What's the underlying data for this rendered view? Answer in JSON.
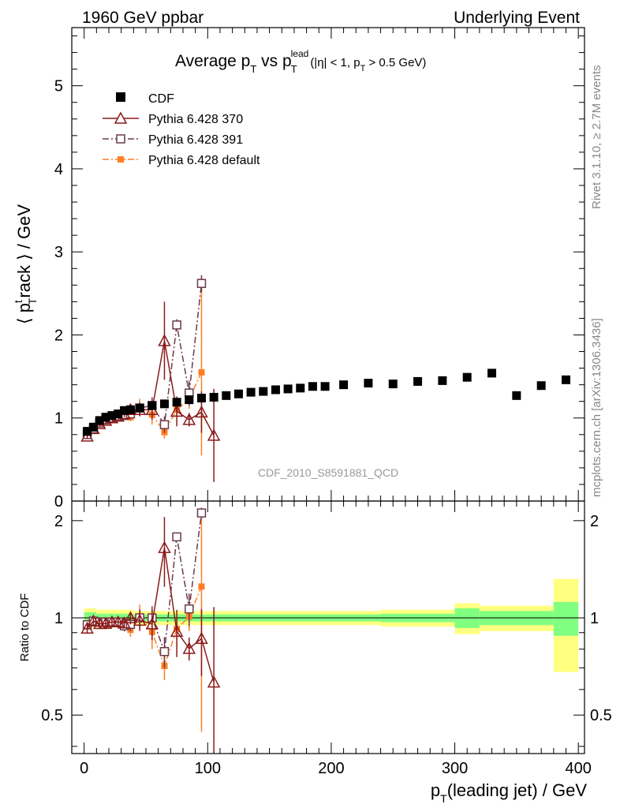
{
  "header": {
    "left": "1960 GeV ppbar",
    "right": "Underlying Event"
  },
  "title": {
    "main": "Average p",
    "sub_t": "T",
    "vs": " vs p",
    "sub_t2": "T",
    "sup_lead": "lead",
    "cuts": "(|η| < 1, p",
    "cuts_sub": "T",
    "cuts_end": " > 0.5 GeV)"
  },
  "watermark": "CDF_2010_S8591881_QCD",
  "side_text": {
    "rivet": "Rivet 3.1.10, ≥ 2.7M events",
    "mcplots": "mcplots.cern.ch [arXiv:1306.3436]"
  },
  "axes": {
    "ylabel_top": "⟨ p",
    "ylabel_top_sup": "t",
    "ylabel_top_sub": "T",
    "ylabel_top_end": "rack ⟩ / GeV",
    "ylabel_ratio": "Ratio to CDF",
    "xlabel_start": "p",
    "xlabel_sub": "T",
    "xlabel_end": "(leading jet) / GeV"
  },
  "legend": [
    {
      "label": "CDF",
      "color": "#000000",
      "marker": "square-filled"
    },
    {
      "label": "Pythia 6.428 370",
      "color": "#8b1a1a",
      "marker": "triangle-open"
    },
    {
      "label": "Pythia 6.428 391",
      "color": "#6b3a4b",
      "marker": "square-open"
    },
    {
      "label": "Pythia 6.428 default",
      "color": "#ff7f24",
      "marker": "square-filled-small"
    }
  ],
  "chart_data": {
    "type": "scatter",
    "xlim": [
      -10,
      405
    ],
    "ylim": [
      0,
      5.7
    ],
    "ratio_ylim": [
      0.38,
      2.3
    ],
    "ratio_log": true,
    "xticks": [
      0,
      100,
      200,
      300,
      400
    ],
    "yticks": [
      0,
      1,
      2,
      3,
      4,
      5
    ],
    "ratio_yticks": [
      0.5,
      1,
      2
    ],
    "series": [
      {
        "name": "CDF",
        "color": "#000000",
        "marker": "square-filled",
        "x": [
          2.5,
          7.5,
          12.5,
          17.5,
          22.5,
          27.5,
          32.5,
          37.5,
          45,
          55,
          65,
          75,
          85,
          95,
          105,
          115,
          125,
          135,
          145,
          155,
          165,
          175,
          185,
          195,
          210,
          230,
          250,
          270,
          290,
          310,
          330,
          350,
          370,
          390
        ],
        "y": [
          0.84,
          0.89,
          0.97,
          1.01,
          1.03,
          1.05,
          1.09,
          1.1,
          1.12,
          1.15,
          1.17,
          1.19,
          1.22,
          1.24,
          1.25,
          1.27,
          1.29,
          1.31,
          1.32,
          1.34,
          1.35,
          1.36,
          1.38,
          1.38,
          1.4,
          1.42,
          1.41,
          1.44,
          1.45,
          1.49,
          1.54,
          1.27,
          1.39,
          1.46
        ]
      },
      {
        "name": "Pythia 6.428 370",
        "color": "#8b1a1a",
        "marker": "triangle-open",
        "line": "solid",
        "x": [
          2.5,
          7.5,
          12.5,
          17.5,
          22.5,
          27.5,
          32.5,
          37.5,
          45,
          55,
          65,
          75,
          85,
          95,
          105
        ],
        "y": [
          0.78,
          0.87,
          0.93,
          0.97,
          1.0,
          1.02,
          1.05,
          1.1,
          1.1,
          1.1,
          1.93,
          1.08,
          0.98,
          1.07,
          0.79
        ],
        "err": [
          0.03,
          0.03,
          0.03,
          0.03,
          0.03,
          0.04,
          0.04,
          0.05,
          0.08,
          0.12,
          0.47,
          0.18,
          0.08,
          0.25,
          0.56
        ]
      },
      {
        "name": "Pythia 6.428 391",
        "color": "#6b3a4b",
        "marker": "square-open",
        "line": "dashdot",
        "x": [
          2.5,
          7.5,
          12.5,
          17.5,
          22.5,
          27.5,
          32.5,
          37.5,
          45,
          55,
          65,
          75,
          85,
          95
        ],
        "y": [
          0.8,
          0.87,
          0.94,
          0.98,
          1.0,
          1.02,
          1.03,
          1.05,
          1.12,
          1.15,
          0.92,
          2.12,
          1.3,
          2.62
        ],
        "err": [
          0.02,
          0.02,
          0.03,
          0.03,
          0.03,
          0.03,
          0.04,
          0.05,
          0.07,
          0.1,
          0.1,
          0.07,
          0.15,
          0.1
        ]
      },
      {
        "name": "Pythia 6.428 default",
        "color": "#ff7f24",
        "marker": "square-filled-small",
        "line": "dashdot",
        "x": [
          2.5,
          7.5,
          12.5,
          17.5,
          22.5,
          27.5,
          32.5,
          37.5,
          45,
          55,
          65,
          75,
          85,
          95
        ],
        "y": [
          0.79,
          0.86,
          0.93,
          0.96,
          0.99,
          1.01,
          1.03,
          1.01,
          1.13,
          1.04,
          0.83,
          1.1,
          1.23,
          1.55
        ],
        "err": [
          0.02,
          0.02,
          0.03,
          0.03,
          0.03,
          0.04,
          0.04,
          0.05,
          0.1,
          0.12,
          0.08,
          0.08,
          0.12,
          1.0
        ]
      }
    ],
    "ratio_bands": [
      {
        "x0": 0,
        "x1": 10,
        "stat": 0.04,
        "tot": 0.07
      },
      {
        "x0": 10,
        "x1": 40,
        "stat": 0.03,
        "tot": 0.06
      },
      {
        "x0": 40,
        "x1": 120,
        "stat": 0.025,
        "tot": 0.05
      },
      {
        "x0": 120,
        "x1": 240,
        "stat": 0.025,
        "tot": 0.05
      },
      {
        "x0": 240,
        "x1": 300,
        "stat": 0.03,
        "tot": 0.06
      },
      {
        "x0": 300,
        "x1": 320,
        "stat": 0.07,
        "tot": 0.11
      },
      {
        "x0": 320,
        "x1": 380,
        "stat": 0.05,
        "tot": 0.09
      },
      {
        "x0": 380,
        "x1": 400,
        "stat": 0.12,
        "tot": 0.32
      }
    ]
  }
}
